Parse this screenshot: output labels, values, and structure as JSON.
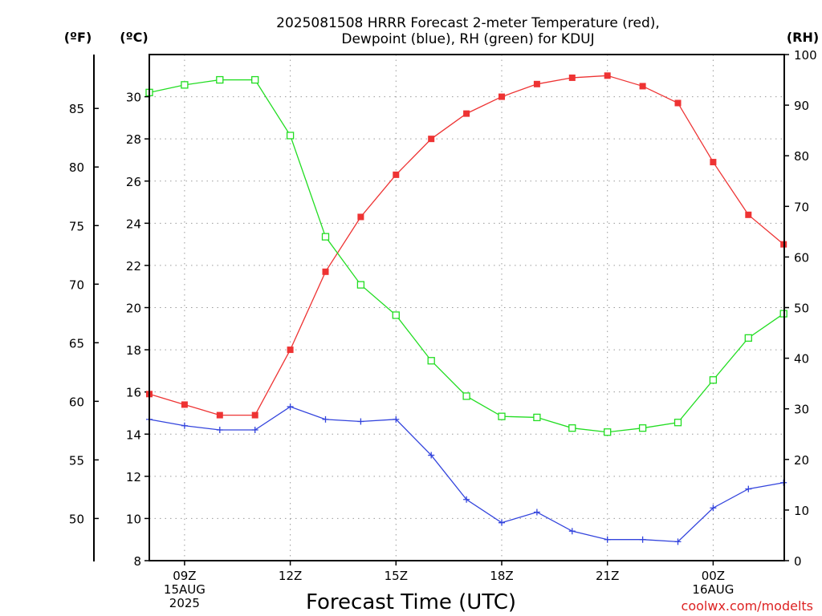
{
  "chart_data": {
    "type": "line",
    "title": [
      "2025081508 HRRR Forecast 2-meter Temperature (red),",
      "Dewpoint (blue), RH (green) for KDUJ"
    ],
    "xlabel": "Forecast Time (UTC)",
    "credit": "coolwx.com/modelts",
    "units": {
      "fahrenheit": "(ºF)",
      "celsius": "(ºC)",
      "rh": "(RH)"
    },
    "x": [
      "08Z",
      "09Z",
      "10Z",
      "11Z",
      "12Z",
      "13Z",
      "14Z",
      "15Z",
      "16Z",
      "17Z",
      "18Z",
      "19Z",
      "20Z",
      "21Z",
      "22Z",
      "23Z",
      "00Z",
      "01Z",
      "02Z"
    ],
    "x_tick_labels": [
      {
        "x": "09Z",
        "lines": [
          "09Z",
          "15AUG",
          "2025"
        ]
      },
      {
        "x": "12Z",
        "lines": [
          "12Z"
        ]
      },
      {
        "x": "15Z",
        "lines": [
          "15Z"
        ]
      },
      {
        "x": "18Z",
        "lines": [
          "18Z"
        ]
      },
      {
        "x": "21Z",
        "lines": [
          "21Z"
        ]
      },
      {
        "x": "00Z",
        "lines": [
          "00Z",
          "16AUG"
        ]
      }
    ],
    "y_celsius": {
      "range": [
        8,
        32
      ],
      "ticks": [
        8,
        10,
        12,
        14,
        16,
        18,
        20,
        22,
        24,
        26,
        28,
        30
      ]
    },
    "y_fahrenheit": {
      "ticks": [
        50,
        55,
        60,
        65,
        70,
        75,
        80,
        85
      ]
    },
    "y_rh": {
      "range": [
        0,
        100
      ],
      "ticks": [
        0,
        10,
        20,
        30,
        40,
        50,
        60,
        70,
        80,
        90,
        100
      ]
    },
    "grid": true,
    "series": [
      {
        "key": "temp",
        "axis": "celsius",
        "color": "#ee3333",
        "marker": "filled-square",
        "values": [
          15.9,
          15.4,
          14.9,
          14.9,
          18.0,
          21.7,
          24.3,
          26.3,
          28.0,
          29.2,
          30.0,
          30.6,
          30.9,
          31.0,
          30.5,
          29.7,
          26.9,
          24.4,
          23.0
        ]
      },
      {
        "key": "dewpoint",
        "axis": "celsius",
        "color": "#3344dd",
        "marker": "plus",
        "values": [
          14.7,
          14.4,
          14.2,
          14.2,
          15.3,
          14.7,
          14.6,
          14.7,
          13.0,
          10.9,
          9.8,
          10.3,
          9.4,
          9.0,
          9.0,
          8.9,
          10.5,
          11.4,
          11.7
        ]
      },
      {
        "key": "rh",
        "axis": "rh",
        "color": "#22dd22",
        "marker": "open-square",
        "values": [
          92.5,
          94.0,
          95.0,
          95.0,
          84.0,
          64.0,
          54.5,
          48.5,
          39.5,
          32.5,
          28.5,
          28.3,
          26.2,
          25.4,
          26.2,
          27.3,
          35.7,
          44.0,
          48.8
        ]
      }
    ]
  }
}
